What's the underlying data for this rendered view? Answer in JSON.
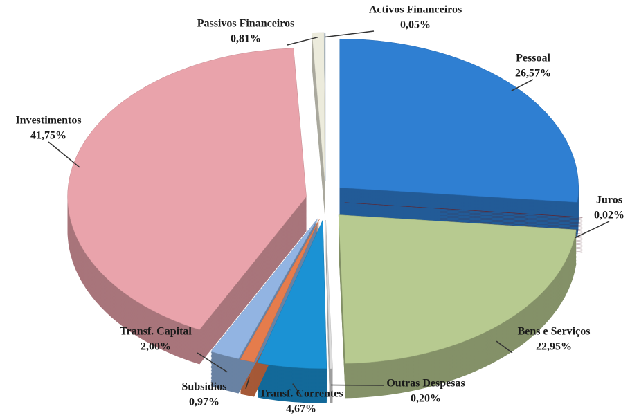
{
  "chart_data": {
    "type": "pie",
    "categories": [
      "Pessoal",
      "Juros",
      "Bens e Serviços",
      "Outras Despesas",
      "Transf. Correntes",
      "Subsidios",
      "Transf. Capital",
      "Investimentos",
      "Passivos Financeiros",
      "Activos Financeiros"
    ],
    "values": [
      26.57,
      0.02,
      22.95,
      0.2,
      4.67,
      0.97,
      2.0,
      41.75,
      0.81,
      0.05
    ],
    "value_labels": [
      "26,57%",
      "0,02%",
      "22,95%",
      "0,20%",
      "4,67%",
      "0,97%",
      "2,00%",
      "41,75%",
      "0,81%",
      "0,05%"
    ],
    "colors": [
      "#2f7fd2",
      "#6e2d38",
      "#b7ca90",
      "#dcdcdc",
      "#1b92d4",
      "#e57c4c",
      "#92b4e2",
      "#e9a3ab",
      "#ecebdc",
      "#a3bfdb"
    ]
  }
}
